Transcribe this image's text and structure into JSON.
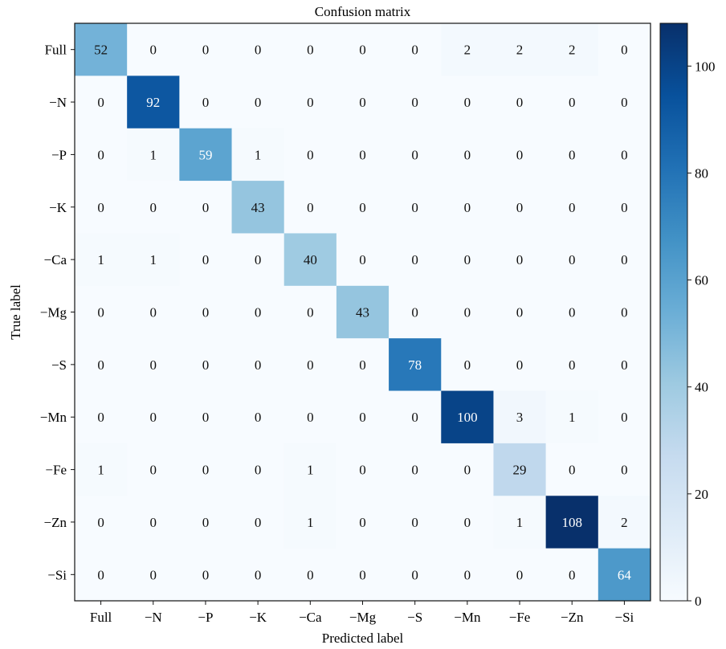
{
  "chart_data": {
    "type": "heatmap",
    "title": "Confusion matrix",
    "xlabel": "Predicted label",
    "ylabel": "True label",
    "x_categories": [
      "Full",
      "−N",
      "−P",
      "−K",
      "−Ca",
      "−Mg",
      "−S",
      "−Mn",
      "−Fe",
      "−Zn",
      "−Si"
    ],
    "y_categories": [
      "Full",
      "−N",
      "−P",
      "−K",
      "−Ca",
      "−Mg",
      "−S",
      "−Mn",
      "−Fe",
      "−Zn",
      "−Si"
    ],
    "values": [
      [
        52,
        0,
        0,
        0,
        0,
        0,
        0,
        2,
        2,
        2,
        0
      ],
      [
        0,
        92,
        0,
        0,
        0,
        0,
        0,
        0,
        0,
        0,
        0
      ],
      [
        0,
        1,
        59,
        1,
        0,
        0,
        0,
        0,
        0,
        0,
        0
      ],
      [
        0,
        0,
        0,
        43,
        0,
        0,
        0,
        0,
        0,
        0,
        0
      ],
      [
        1,
        1,
        0,
        0,
        40,
        0,
        0,
        0,
        0,
        0,
        0
      ],
      [
        0,
        0,
        0,
        0,
        0,
        43,
        0,
        0,
        0,
        0,
        0
      ],
      [
        0,
        0,
        0,
        0,
        0,
        0,
        78,
        0,
        0,
        0,
        0
      ],
      [
        0,
        0,
        0,
        0,
        0,
        0,
        0,
        100,
        3,
        1,
        0
      ],
      [
        1,
        0,
        0,
        0,
        1,
        0,
        0,
        0,
        29,
        0,
        0
      ],
      [
        0,
        0,
        0,
        0,
        1,
        0,
        0,
        0,
        1,
        108,
        2
      ],
      [
        0,
        0,
        0,
        0,
        0,
        0,
        0,
        0,
        0,
        0,
        64
      ]
    ],
    "colorbar": {
      "min": 0,
      "max": 108,
      "ticks": [
        0,
        20,
        40,
        60,
        80,
        100
      ],
      "colormap": "Blues",
      "colors": [
        "#f7fbff",
        "#deebf7",
        "#c6dbef",
        "#9ecae1",
        "#6baed6",
        "#4292c6",
        "#2171b5",
        "#08519c",
        "#08306b"
      ]
    }
  }
}
